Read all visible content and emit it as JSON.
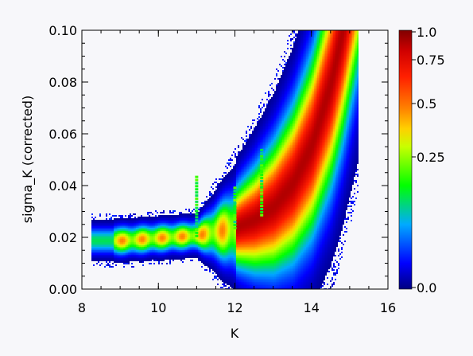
{
  "chart_data": {
    "type": "heatmap",
    "xlabel": "K",
    "ylabel": "sigma_K (corrected)",
    "xlim": [
      8,
      16
    ],
    "ylim": [
      0.0,
      0.1
    ],
    "x_ticks": [
      "8",
      "10",
      "12",
      "14",
      "16"
    ],
    "y_ticks": [
      "0.00",
      "0.02",
      "0.04",
      "0.06",
      "0.08",
      "0.10"
    ],
    "colorbar": {
      "range": [
        0.0,
        1.0
      ],
      "scale": "log-like (density)",
      "tick_labels": [
        "1.0",
        "0.75",
        "0.5",
        "0.25",
        "0.0"
      ],
      "tick_values": [
        1.0,
        0.75,
        0.5,
        0.25,
        0.0
      ],
      "colormap": "rainbow"
    },
    "ridge": {
      "description_points_K": [
        8.5,
        9.0,
        10.0,
        11.0,
        12.0,
        12.5,
        13.0,
        13.5,
        14.0,
        14.5,
        14.8
      ],
      "description_points_sigma": [
        0.019,
        0.019,
        0.02,
        0.021,
        0.024,
        0.027,
        0.032,
        0.041,
        0.056,
        0.08,
        0.1
      ]
    },
    "grid": false,
    "legend": "colorbar right"
  },
  "colors": {
    "background": "#f7f7fa",
    "axis": "#000000"
  }
}
